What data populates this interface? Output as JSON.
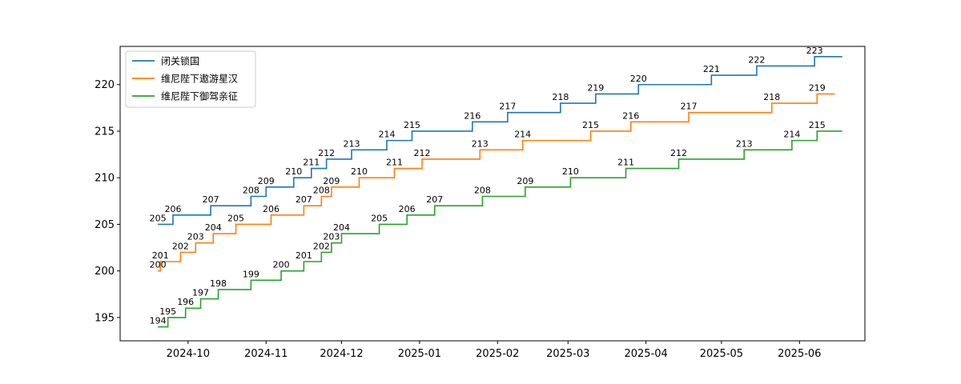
{
  "chart_data": {
    "type": "line",
    "step": "post",
    "x_axis": {
      "type": "date",
      "ticks": [
        "2024-10-01",
        "2024-11-01",
        "2024-12-01",
        "2025-01-01",
        "2025-02-01",
        "2025-03-01",
        "2025-04-01",
        "2025-05-01",
        "2025-06-01"
      ],
      "tick_labels": [
        "2024-10",
        "2024-11",
        "2024-12",
        "2025-01",
        "2025-02",
        "2025-03",
        "2025-04",
        "2025-05",
        "2025-06"
      ],
      "range": [
        "2024-09-04",
        "2025-06-27"
      ]
    },
    "y_axis": {
      "ticks": [
        195,
        200,
        205,
        210,
        215,
        220
      ],
      "range": [
        192.5,
        224.1
      ]
    },
    "legend": {
      "position": "top-left"
    },
    "grid": false,
    "series": [
      {
        "name": "闭关锁国",
        "color": "#1f77b4",
        "points": [
          {
            "date": "2024-09-19",
            "value": 205
          },
          {
            "date": "2024-09-25",
            "value": 206
          },
          {
            "date": "2024-10-10",
            "value": 207
          },
          {
            "date": "2024-10-26",
            "value": 208
          },
          {
            "date": "2024-11-01",
            "value": 209
          },
          {
            "date": "2024-11-12",
            "value": 210
          },
          {
            "date": "2024-11-19",
            "value": 211
          },
          {
            "date": "2024-11-25",
            "value": 212
          },
          {
            "date": "2024-12-05",
            "value": 213
          },
          {
            "date": "2024-12-19",
            "value": 214
          },
          {
            "date": "2024-12-29",
            "value": 215
          },
          {
            "date": "2025-01-22",
            "value": 216
          },
          {
            "date": "2025-02-05",
            "value": 217
          },
          {
            "date": "2025-02-26",
            "value": 218
          },
          {
            "date": "2025-03-12",
            "value": 219
          },
          {
            "date": "2025-03-29",
            "value": 220
          },
          {
            "date": "2025-04-27",
            "value": 221
          },
          {
            "date": "2025-05-15",
            "value": 222
          },
          {
            "date": "2025-06-07",
            "value": 223
          },
          {
            "date": "2025-06-18",
            "value": 223
          }
        ],
        "label_points": [
          0,
          1,
          2,
          3,
          4,
          5,
          6,
          7,
          8,
          9,
          10,
          11,
          12,
          13,
          14,
          15,
          16,
          17,
          18
        ]
      },
      {
        "name": "维尼陛下遨游星汉",
        "color": "#ff7f0e",
        "points": [
          {
            "date": "2024-09-19",
            "value": 200
          },
          {
            "date": "2024-09-20",
            "value": 201
          },
          {
            "date": "2024-09-28",
            "value": 202
          },
          {
            "date": "2024-10-04",
            "value": 203
          },
          {
            "date": "2024-10-11",
            "value": 204
          },
          {
            "date": "2024-10-20",
            "value": 205
          },
          {
            "date": "2024-11-03",
            "value": 206
          },
          {
            "date": "2024-11-16",
            "value": 207
          },
          {
            "date": "2024-11-23",
            "value": 208
          },
          {
            "date": "2024-11-27",
            "value": 209
          },
          {
            "date": "2024-12-08",
            "value": 210
          },
          {
            "date": "2024-12-22",
            "value": 211
          },
          {
            "date": "2025-01-02",
            "value": 212
          },
          {
            "date": "2025-01-25",
            "value": 213
          },
          {
            "date": "2025-02-11",
            "value": 214
          },
          {
            "date": "2025-03-10",
            "value": 215
          },
          {
            "date": "2025-03-26",
            "value": 216
          },
          {
            "date": "2025-04-18",
            "value": 217
          },
          {
            "date": "2025-05-21",
            "value": 218
          },
          {
            "date": "2025-06-08",
            "value": 219
          },
          {
            "date": "2025-06-15",
            "value": 219
          }
        ],
        "label_points": [
          0,
          1,
          2,
          3,
          4,
          5,
          6,
          7,
          8,
          9,
          10,
          11,
          12,
          13,
          14,
          15,
          16,
          17,
          18,
          19
        ]
      },
      {
        "name": "维尼陛下御驾亲征",
        "color": "#2ca02c",
        "points": [
          {
            "date": "2024-09-19",
            "value": 194
          },
          {
            "date": "2024-09-23",
            "value": 195
          },
          {
            "date": "2024-09-30",
            "value": 196
          },
          {
            "date": "2024-10-06",
            "value": 197
          },
          {
            "date": "2024-10-13",
            "value": 198
          },
          {
            "date": "2024-10-26",
            "value": 199
          },
          {
            "date": "2024-11-07",
            "value": 200
          },
          {
            "date": "2024-11-16",
            "value": 201
          },
          {
            "date": "2024-11-23",
            "value": 202
          },
          {
            "date": "2024-11-27",
            "value": 203
          },
          {
            "date": "2024-12-01",
            "value": 204
          },
          {
            "date": "2024-12-16",
            "value": 205
          },
          {
            "date": "2024-12-27",
            "value": 206
          },
          {
            "date": "2025-01-07",
            "value": 207
          },
          {
            "date": "2025-01-26",
            "value": 208
          },
          {
            "date": "2025-02-12",
            "value": 209
          },
          {
            "date": "2025-03-02",
            "value": 210
          },
          {
            "date": "2025-03-24",
            "value": 211
          },
          {
            "date": "2025-04-14",
            "value": 212
          },
          {
            "date": "2025-05-10",
            "value": 213
          },
          {
            "date": "2025-05-29",
            "value": 214
          },
          {
            "date": "2025-06-08",
            "value": 215
          },
          {
            "date": "2025-06-18",
            "value": 215
          }
        ],
        "label_points": [
          0,
          1,
          2,
          3,
          4,
          5,
          6,
          7,
          8,
          9,
          10,
          11,
          12,
          13,
          14,
          15,
          16,
          17,
          18,
          19,
          20,
          21
        ]
      }
    ]
  }
}
